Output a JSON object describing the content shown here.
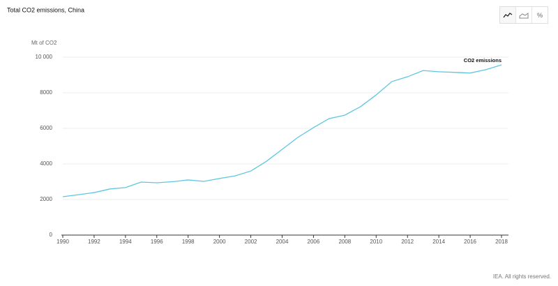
{
  "chart_data": {
    "type": "line",
    "title": "Total CO2 emissions, China",
    "y_label": "Mt of CO2",
    "x": [
      1990,
      1991,
      1992,
      1993,
      1994,
      1995,
      1996,
      1997,
      1998,
      1999,
      2000,
      2001,
      2002,
      2003,
      2004,
      2005,
      2006,
      2007,
      2008,
      2009,
      2010,
      2011,
      2012,
      2013,
      2014,
      2015,
      2016,
      2017,
      2018
    ],
    "series": [
      {
        "name": "CO2 emissions",
        "color": "#5bc8e0",
        "values": [
          2157,
          2270,
          2390,
          2590,
          2670,
          2980,
          2940,
          3000,
          3100,
          3020,
          3180,
          3330,
          3600,
          4150,
          4820,
          5490,
          6040,
          6550,
          6740,
          7220,
          7880,
          8630,
          8900,
          9250,
          9180,
          9150,
          9110,
          9300,
          9570
        ]
      }
    ],
    "xlim": [
      1990,
      2018
    ],
    "xticks": [
      1990,
      1992,
      1994,
      1996,
      1998,
      2000,
      2002,
      2004,
      2006,
      2008,
      2010,
      2012,
      2014,
      2016,
      2018
    ],
    "ylim": [
      0,
      10000
    ],
    "yticks": [
      0,
      2000,
      4000,
      6000,
      8000,
      {
        "value": 10000,
        "label": "10 000"
      }
    ],
    "grid": true
  },
  "toolbar": {
    "percent": "%"
  },
  "footer": "IEA. All rights reserved."
}
